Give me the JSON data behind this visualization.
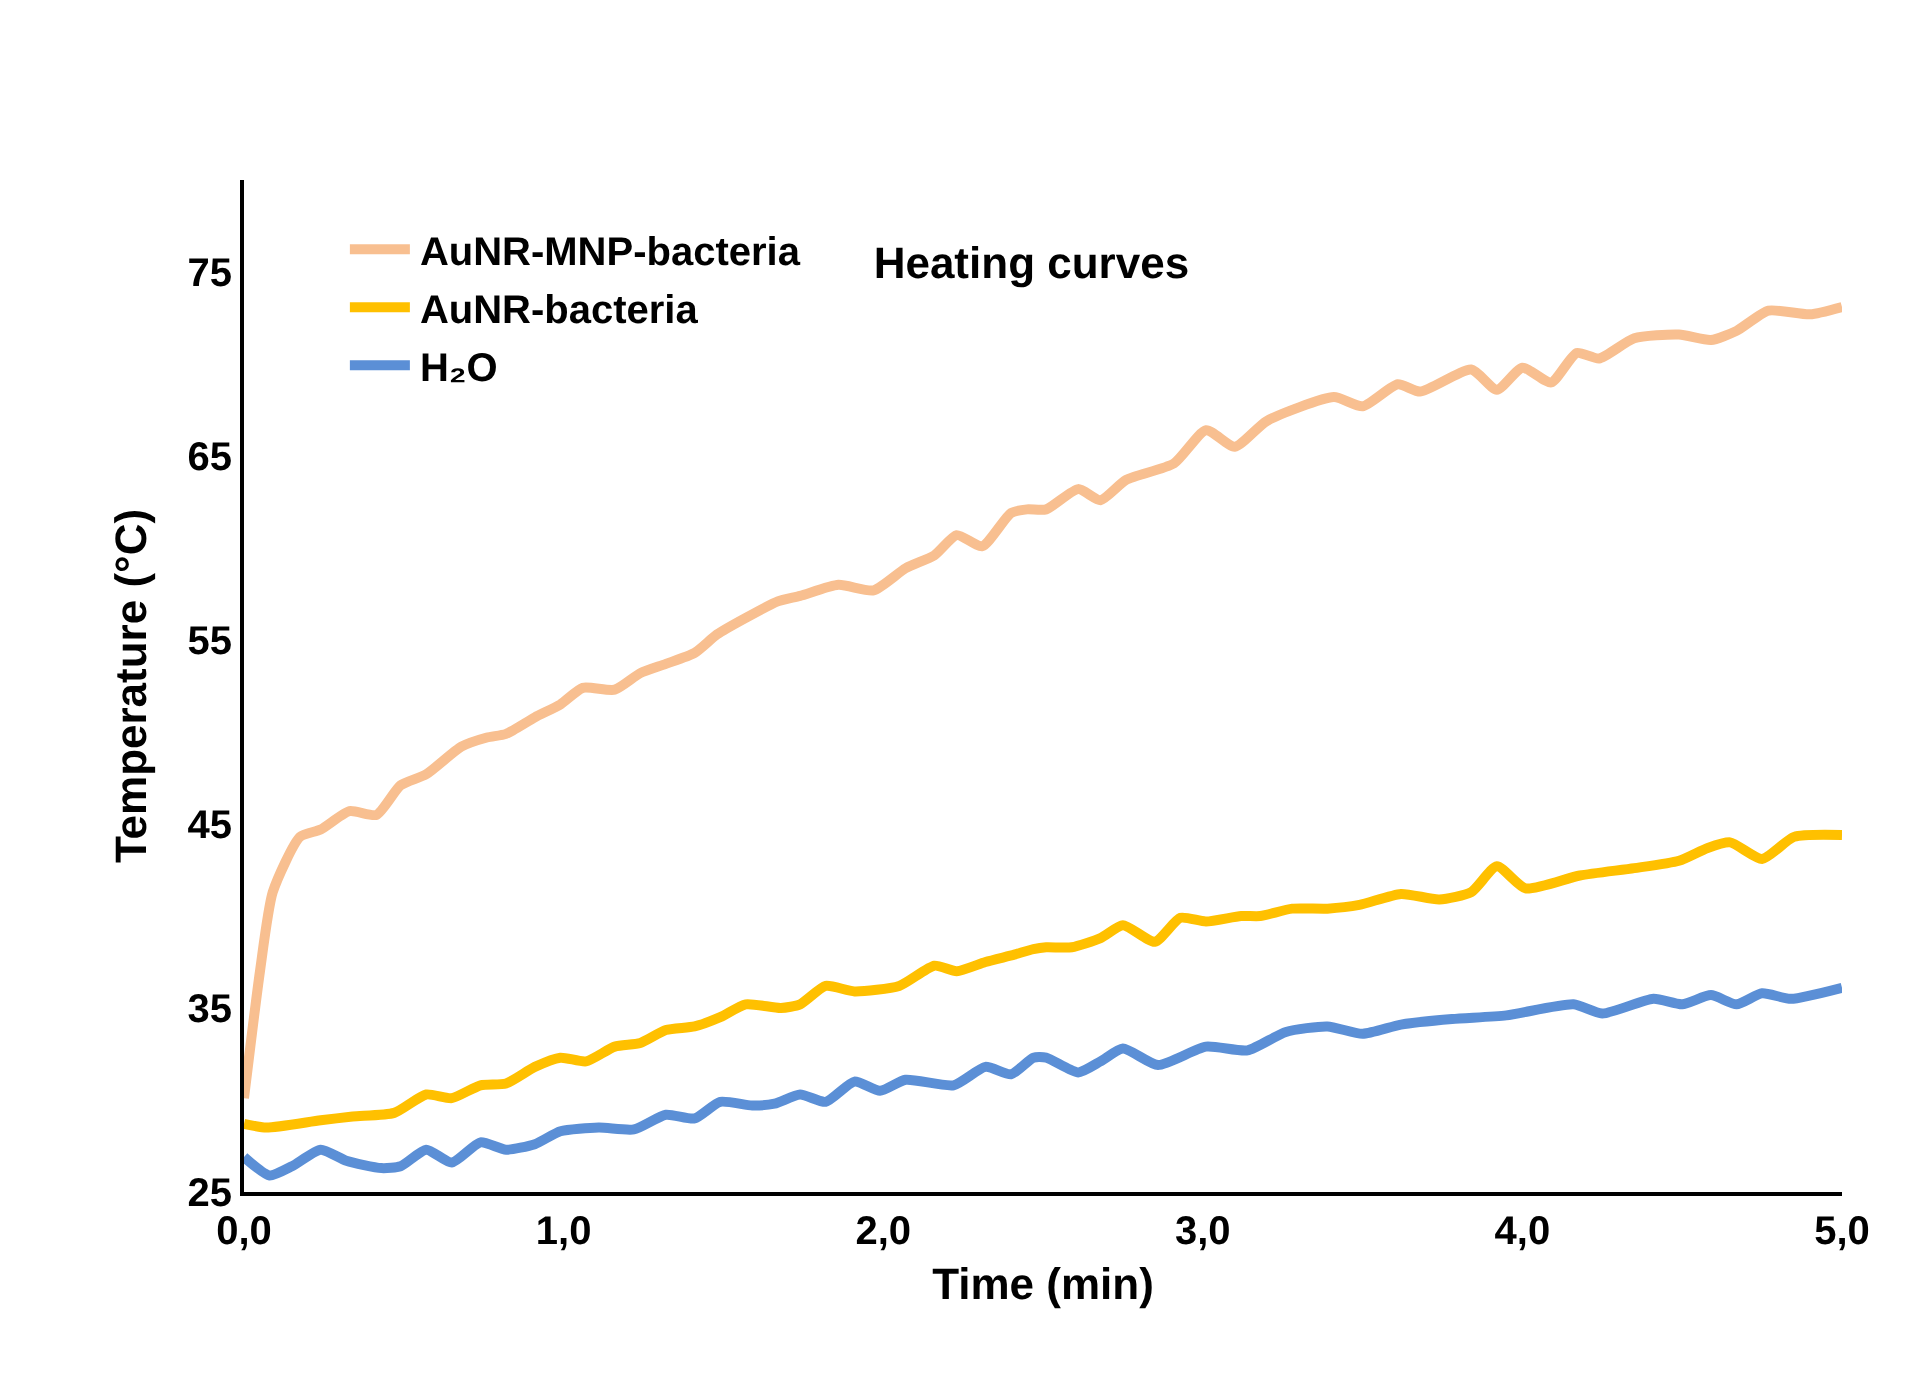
{
  "chart_data": {
    "type": "line",
    "title": "Heating curves",
    "xlabel": "Time (min)",
    "ylabel": "Temperature (°C)",
    "xlim": [
      0,
      5
    ],
    "xticks": [
      {
        "value": 0,
        "label": "0,0"
      },
      {
        "value": 1,
        "label": "1,0"
      },
      {
        "value": 2,
        "label": "2,0"
      },
      {
        "value": 3,
        "label": "3,0"
      },
      {
        "value": 4,
        "label": "4,0"
      },
      {
        "value": 5,
        "label": "5,0"
      }
    ],
    "ylim": [
      25,
      80
    ],
    "yticks": [
      25,
      35,
      45,
      55,
      65,
      75
    ],
    "grid": false,
    "legend": "top left",
    "marker": "none",
    "line_style": "solid",
    "series": [
      {
        "name": "AuNR-MNP-bacteria",
        "color": "#f8bf90",
        "x": [
          0,
          0.05,
          0.09,
          0.175,
          0.24,
          0.33,
          0.415,
          0.49,
          0.57,
          0.68,
          0.76,
          0.82,
          0.91,
          0.99,
          1.06,
          1.16,
          1.24,
          1.32,
          1.41,
          1.48,
          1.57,
          1.67,
          1.74,
          1.86,
          1.97,
          2.07,
          2.16,
          2.23,
          2.31,
          2.4,
          2.45,
          2.51,
          2.61,
          2.68,
          2.76,
          2.91,
          3.01,
          3.1,
          3.2,
          3.41,
          3.5,
          3.61,
          3.68,
          3.84,
          3.92,
          4.0,
          4.09,
          4.17,
          4.24,
          4.35,
          4.49,
          4.59,
          4.67,
          4.77,
          4.9,
          5.0
        ],
        "values": [
          30.1,
          37.0,
          41.3,
          44.3,
          44.7,
          45.7,
          45.5,
          47.1,
          47.7,
          49.2,
          49.7,
          49.9,
          50.8,
          51.5,
          52.4,
          52.3,
          53.2,
          53.7,
          54.3,
          55.3,
          56.2,
          57.1,
          57.4,
          58.0,
          57.7,
          58.9,
          59.6,
          60.7,
          60.1,
          61.9,
          62.1,
          62.1,
          63.2,
          62.6,
          63.7,
          64.6,
          66.4,
          65.5,
          66.9,
          68.2,
          67.7,
          68.9,
          68.5,
          69.7,
          68.6,
          69.8,
          69.0,
          70.6,
          70.3,
          71.4,
          71.6,
          71.3,
          71.8,
          72.9,
          72.7,
          73.1
        ]
      },
      {
        "name": "AuNR-bacteria",
        "color": "#ffc000",
        "x": [
          0,
          0.07,
          0.24,
          0.34,
          0.47,
          0.57,
          0.65,
          0.74,
          0.82,
          0.91,
          0.99,
          1.07,
          1.16,
          1.24,
          1.32,
          1.41,
          1.49,
          1.57,
          1.68,
          1.74,
          1.82,
          1.91,
          2.05,
          2.16,
          2.23,
          2.32,
          2.41,
          2.47,
          2.51,
          2.59,
          2.68,
          2.75,
          2.85,
          2.93,
          3.01,
          3.12,
          3.18,
          3.28,
          3.39,
          3.49,
          3.62,
          3.74,
          3.84,
          3.92,
          4.01,
          4.18,
          4.35,
          4.49,
          4.58,
          4.65,
          4.75,
          4.85,
          5.0
        ],
        "values": [
          28.7,
          28.5,
          28.9,
          29.1,
          29.3,
          30.3,
          30.1,
          30.8,
          30.9,
          31.8,
          32.3,
          32.1,
          32.9,
          33.1,
          33.8,
          34.0,
          34.5,
          35.2,
          35.0,
          35.2,
          36.2,
          35.9,
          36.2,
          37.3,
          37.0,
          37.5,
          37.9,
          38.2,
          38.3,
          38.3,
          38.8,
          39.5,
          38.6,
          39.9,
          39.7,
          40.0,
          40.0,
          40.4,
          40.4,
          40.6,
          41.2,
          40.9,
          41.3,
          42.7,
          41.5,
          42.2,
          42.6,
          43.0,
          43.7,
          44.0,
          43.1,
          44.3,
          44.4
        ]
      },
      {
        "name": "H₂O",
        "color": "#5b8fd6",
        "x": [
          0,
          0.08,
          0.15,
          0.24,
          0.32,
          0.43,
          0.49,
          0.57,
          0.65,
          0.74,
          0.82,
          0.91,
          0.99,
          1.11,
          1.22,
          1.32,
          1.41,
          1.49,
          1.59,
          1.66,
          1.74,
          1.82,
          1.91,
          1.99,
          2.07,
          2.22,
          2.32,
          2.4,
          2.47,
          2.51,
          2.61,
          2.68,
          2.75,
          2.86,
          3.01,
          3.14,
          3.26,
          3.39,
          3.5,
          3.62,
          3.78,
          3.95,
          4.16,
          4.25,
          4.41,
          4.5,
          4.59,
          4.67,
          4.75,
          4.84,
          5.0
        ],
        "values": [
          26.9,
          25.9,
          26.4,
          27.3,
          26.7,
          26.3,
          26.4,
          27.3,
          26.6,
          27.7,
          27.3,
          27.6,
          28.3,
          28.5,
          28.4,
          29.2,
          29.0,
          29.9,
          29.7,
          29.8,
          30.3,
          29.9,
          31.0,
          30.5,
          31.1,
          30.8,
          31.8,
          31.4,
          32.3,
          32.3,
          31.5,
          32.1,
          32.8,
          31.9,
          32.9,
          32.7,
          33.7,
          34.0,
          33.6,
          34.1,
          34.4,
          34.6,
          35.2,
          34.7,
          35.5,
          35.2,
          35.7,
          35.2,
          35.8,
          35.5,
          36.1
        ]
      }
    ]
  }
}
